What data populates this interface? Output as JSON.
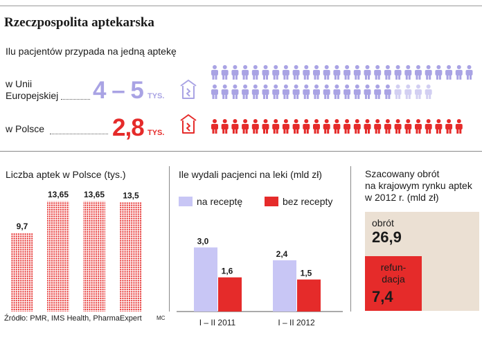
{
  "title": "Rzeczpospolita aptekarska",
  "subtitle": "Ilu pacjentów przypada na jedną aptekę",
  "eu": {
    "label_line1": "w Unii",
    "label_line2": "Europejskiej",
    "value": "4 – 5",
    "unit": "TYS.",
    "color": "#a9a3e4",
    "color_light": "#d2cff2",
    "icon": "pharmacy-building-icon",
    "people_icon": "person-icon"
  },
  "pl": {
    "label": "w Polsce",
    "value": "2,8",
    "unit": "TYS.",
    "color": "#e52b2a",
    "icon": "pharmacy-building-icon",
    "people_icon": "person-icon"
  },
  "chart_data": [
    {
      "type": "bar",
      "title": "Liczba aptek w Polsce (tys.)",
      "categories": [
        "",
        "",
        "",
        ""
      ],
      "values": [
        9.7,
        13.65,
        13.65,
        13.5
      ],
      "value_labels": [
        "9,7",
        "13,65",
        "13,65",
        "13,5"
      ],
      "ylim": [
        0,
        15
      ],
      "color": "#e52b2a",
      "pattern": "dotted"
    },
    {
      "type": "bar",
      "title": "Ile wydali pacjenci na leki (mld zł)",
      "categories": [
        "I – II 2011",
        "I – II 2012"
      ],
      "series": [
        {
          "name": "na receptę",
          "values": [
            3.0,
            2.4
          ],
          "labels": [
            "3,0",
            "2,4"
          ],
          "color": "#c8c6f5"
        },
        {
          "name": "bez recepty",
          "values": [
            1.6,
            1.5
          ],
          "labels": [
            "1,6",
            "1,5"
          ],
          "color": "#e52b2a"
        }
      ],
      "ylim": [
        0,
        3.5
      ],
      "legend": "top"
    }
  ],
  "turnover": {
    "title_line1": "Szacowany obrót",
    "title_line2": "na krajowym rynku aptek",
    "title_line3": "w 2012 r. (mld zł)",
    "total_label": "obrót",
    "total_value": "26,9",
    "total_color": "#ebe0d3",
    "refund_label_line1": "refun-",
    "refund_label_line2": "dacja",
    "refund_value": "7,4",
    "refund_color": "#e52b2a"
  },
  "source": "Źródło: PMR, IMS Health, PharmaExpert",
  "author": "MC"
}
